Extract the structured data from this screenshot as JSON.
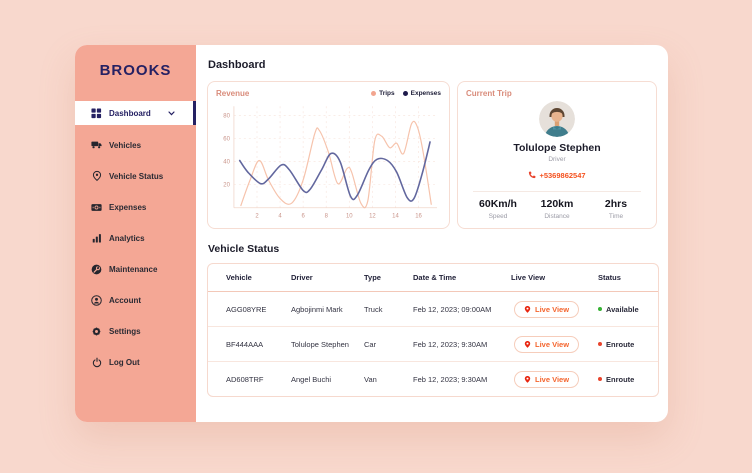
{
  "app": {
    "brand": "BROOKS"
  },
  "header": {
    "title": "Dashboard"
  },
  "sidebar": {
    "items": [
      {
        "label": "Dashboard",
        "icon": "dashboard-grid-icon",
        "active": true
      },
      {
        "label": "Vehicles",
        "icon": "truck-icon"
      },
      {
        "label": "Vehicle Status",
        "icon": "map-pin-icon"
      },
      {
        "label": "Expenses",
        "icon": "banknote-icon"
      },
      {
        "label": "Analytics",
        "icon": "bar-chart-icon"
      },
      {
        "label": "Maintenance",
        "icon": "wrench-circle-icon"
      },
      {
        "label": "Account",
        "icon": "person-circle-icon"
      },
      {
        "label": "Settings",
        "icon": "gear-icon"
      },
      {
        "label": "Log Out",
        "icon": "power-icon"
      }
    ]
  },
  "revenue_card": {
    "title": "Revenue",
    "legend": [
      {
        "label": "Trips",
        "color": "#F2A58F"
      },
      {
        "label": "Expenses",
        "color": "#1E1B4B"
      }
    ]
  },
  "chart_data": {
    "type": "line",
    "title": "Revenue",
    "xlim": [
      0,
      17.6
    ],
    "ylim": [
      0,
      88
    ],
    "x_ticks": [
      2,
      4,
      6,
      8,
      10,
      12,
      14,
      16
    ],
    "y_ticks": [
      20,
      40,
      60,
      80
    ],
    "grid": "dashed",
    "legend_position": "top-right",
    "series": [
      {
        "name": "Trips",
        "color": "#F6C3AC",
        "width": 1.2,
        "points": [
          [
            0.6,
            2
          ],
          [
            1.4,
            24
          ],
          [
            2.2,
            41
          ],
          [
            3.0,
            24
          ],
          [
            4.0,
            8
          ],
          [
            5.0,
            4
          ],
          [
            6.0,
            24
          ],
          [
            7.0,
            64
          ],
          [
            7.4,
            67
          ],
          [
            8.2,
            48
          ],
          [
            9.0,
            21
          ],
          [
            9.8,
            34
          ],
          [
            10.2,
            31
          ],
          [
            11.0,
            4
          ],
          [
            11.6,
            6
          ],
          [
            12.2,
            58
          ],
          [
            12.8,
            62
          ],
          [
            13.5,
            52
          ],
          [
            14.1,
            56
          ],
          [
            14.7,
            47
          ],
          [
            15.4,
            73
          ],
          [
            15.9,
            70
          ],
          [
            16.4,
            48
          ],
          [
            17.1,
            3
          ]
        ]
      },
      {
        "name": "Expenses",
        "color": "#62679E",
        "width": 1.6,
        "points": [
          [
            0.5,
            41
          ],
          [
            1.2,
            31
          ],
          [
            2.3,
            21
          ],
          [
            3.0,
            25
          ],
          [
            4.1,
            37
          ],
          [
            4.8,
            33
          ],
          [
            6.0,
            15
          ],
          [
            6.6,
            16
          ],
          [
            7.6,
            33
          ],
          [
            8.4,
            47
          ],
          [
            9.2,
            40
          ],
          [
            10.1,
            10
          ],
          [
            10.7,
            11
          ],
          [
            11.7,
            33
          ],
          [
            12.4,
            42
          ],
          [
            13.3,
            41
          ],
          [
            14.1,
            31
          ],
          [
            15.0,
            9
          ],
          [
            15.6,
            8
          ],
          [
            16.3,
            29
          ],
          [
            17.0,
            57
          ]
        ]
      }
    ]
  },
  "current_trip": {
    "title": "Current Trip",
    "driver_name": "Tolulope Stephen",
    "driver_role": "Driver",
    "phone": "+5369862547",
    "stats": [
      {
        "value": "60Km/h",
        "label": "Speed"
      },
      {
        "value": "120km",
        "label": "Distance"
      },
      {
        "value": "2hrs",
        "label": "Time"
      }
    ]
  },
  "vehicle_status": {
    "title": "Vehicle Status",
    "columns": [
      "Vehicle",
      "Driver",
      "Type",
      "Date & Time",
      "Live View",
      "Status"
    ],
    "live_view_label": "Live View",
    "rows": [
      {
        "vehicle": "AGG08YRE",
        "driver": "Agbojinmi Mark",
        "type": "Truck",
        "datetime": "Feb 12, 2023; 09:00AM",
        "status": "Available",
        "status_color": "#35B233"
      },
      {
        "vehicle": "BF444AAA",
        "driver": "Tolulope Stephen",
        "type": "Car",
        "datetime": "Feb 12, 2023; 9:30AM",
        "status": "Enroute",
        "status_color": "#E8442D"
      },
      {
        "vehicle": "AD608TRF",
        "driver": "Angel Buchi",
        "type": "Van",
        "datetime": "Feb 12, 2023; 9:30AM",
        "status": "Enroute",
        "status_color": "#E8442D"
      }
    ]
  },
  "colors": {
    "background": "#F8D8CD",
    "sidebar": "#F4A795",
    "navy": "#252163",
    "accent_orange": "#F4511E",
    "card_border": "#F6DDD3"
  }
}
